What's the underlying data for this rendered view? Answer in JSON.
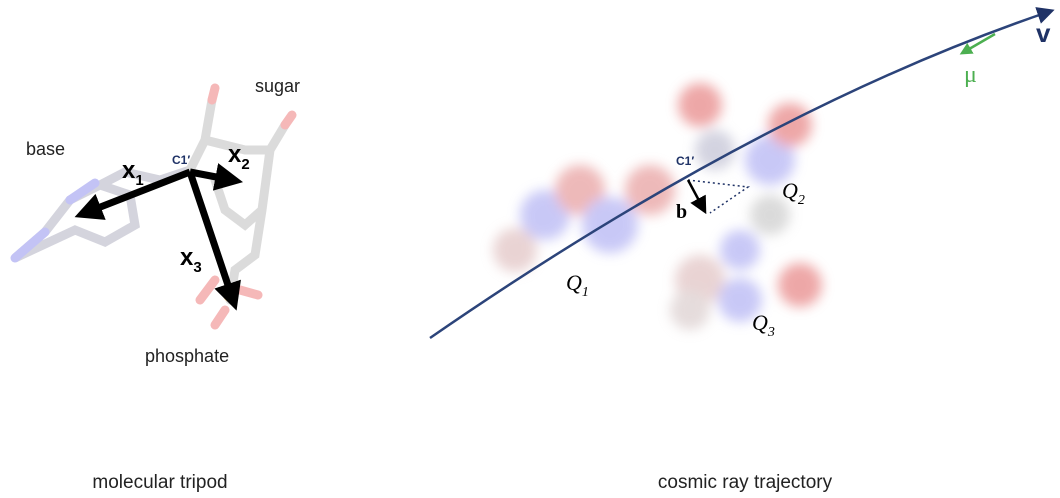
{
  "left_panel": {
    "caption": "molecular tripod",
    "base": "base",
    "sugar": "sugar",
    "phosphate": "phosphate",
    "c1": "C1′",
    "vectors": [
      {
        "symbol": "x",
        "subscript": "1"
      },
      {
        "symbol": "x",
        "subscript": "2"
      },
      {
        "symbol": "x",
        "subscript": "3"
      }
    ]
  },
  "right_panel": {
    "caption": "cosmic ray trajectory",
    "c1": "C1′",
    "b": "b",
    "v": "v",
    "mu": "μ",
    "charges": [
      {
        "symbol": "Q",
        "subscript": "1"
      },
      {
        "symbol": "Q",
        "subscript": "2"
      },
      {
        "symbol": "Q",
        "subscript": "3"
      }
    ]
  }
}
